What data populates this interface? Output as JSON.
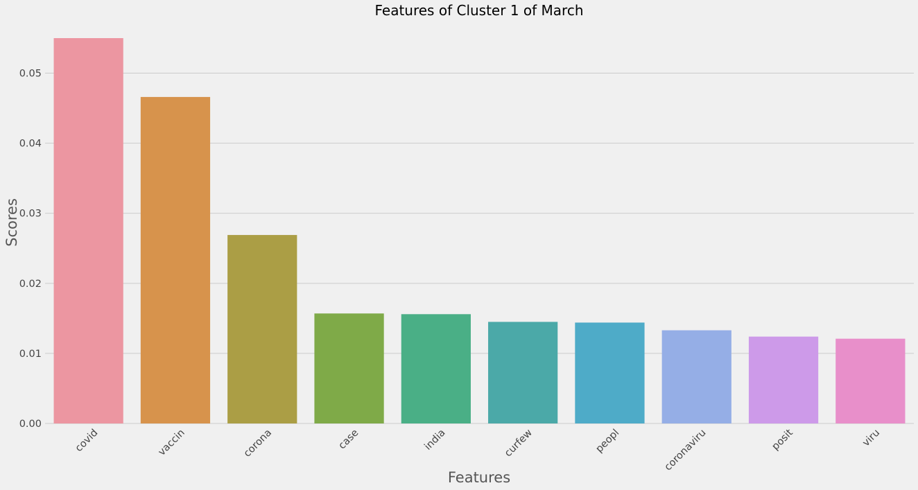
{
  "chart_data": {
    "type": "bar",
    "title": "Features of Cluster 1 of March",
    "xlabel": "Features",
    "ylabel": "Scores",
    "categories": [
      "covid",
      "vaccin",
      "corona",
      "case",
      "india",
      "curfew",
      "peopl",
      "coronaviru",
      "posit",
      "viru"
    ],
    "values": [
      0.055,
      0.0466,
      0.0269,
      0.0157,
      0.0156,
      0.0145,
      0.0144,
      0.0133,
      0.0124,
      0.0121
    ],
    "colors": [
      "#ec96a1",
      "#d7934c",
      "#ab9e45",
      "#7faa48",
      "#4aaf86",
      "#4ba9a8",
      "#4eabc8",
      "#95aee6",
      "#cd9ae9",
      "#e88fca"
    ],
    "ylim": [
      0,
      0.055
    ],
    "yticks": [
      0.0,
      0.01,
      0.02,
      0.03,
      0.04,
      0.05
    ],
    "ytick_labels": [
      "0.00",
      "0.01",
      "0.02",
      "0.03",
      "0.04",
      "0.05"
    ],
    "grid": "horizontal",
    "legend": "none"
  }
}
